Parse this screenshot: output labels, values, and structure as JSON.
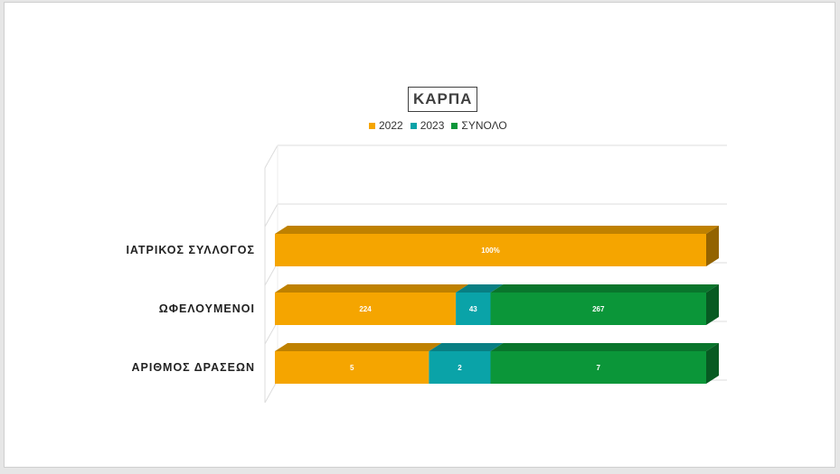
{
  "chart_data": {
    "type": "bar",
    "orientation": "horizontal",
    "stacked": "percent",
    "three_d": true,
    "title": "ΚΑΡΠΑ",
    "categories": [
      "ΙΑΤΡΙΚΟΣ ΣΥΛΛΟΓΟΣ",
      "ΩΦΕΛΟΥΜΕΝΟΙ",
      "ΑΡΙΘΜΟΣ ΔΡΑΣΕΩΝ"
    ],
    "series": [
      {
        "name": "2022",
        "color": "#f5a500",
        "values": [
          1,
          224,
          5
        ],
        "labels": [
          "100%",
          "224",
          "5"
        ]
      },
      {
        "name": "2023",
        "color": "#0aa3a8",
        "values": [
          0,
          43,
          2
        ],
        "labels": [
          "",
          "43",
          "2"
        ]
      },
      {
        "name": "ΣΥΝΟΛΟ",
        "color": "#0b9639",
        "values": [
          0,
          267,
          7
        ],
        "labels": [
          "",
          "267",
          "7"
        ]
      }
    ],
    "legend_position": "top",
    "grid": true
  }
}
